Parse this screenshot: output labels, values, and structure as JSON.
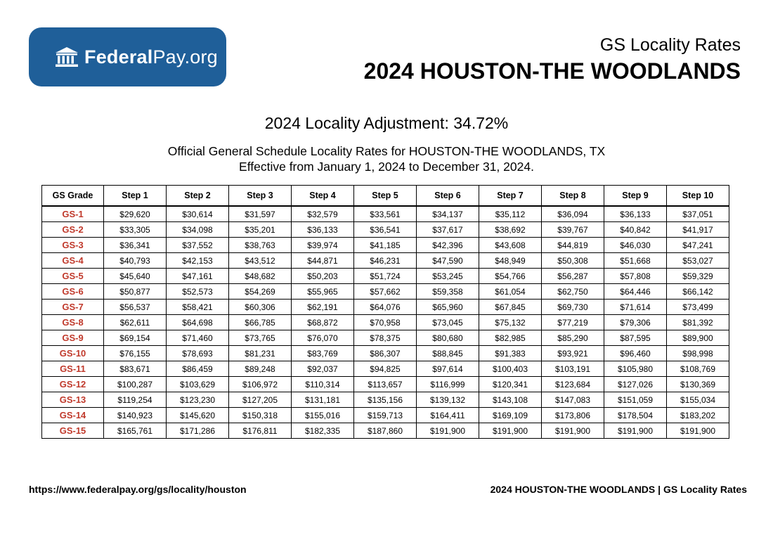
{
  "logo": {
    "text_bold": "Federal",
    "text_regular": "Pay.org",
    "color": "#1f5f99"
  },
  "header": {
    "subtitle": "GS Locality Rates",
    "title": "2024 HOUSTON-THE WOODLANDS"
  },
  "adjustment": "2024 Locality Adjustment: 34.72%",
  "description": {
    "line1": "Official General Schedule Locality Rates for HOUSTON-THE WOODLANDS, TX",
    "line2": "Effective from January 1, 2024 to December 31, 2024."
  },
  "table": {
    "headers": [
      "GS Grade",
      "Step 1",
      "Step 2",
      "Step 3",
      "Step 4",
      "Step 5",
      "Step 6",
      "Step 7",
      "Step 8",
      "Step 9",
      "Step 10"
    ],
    "rows": [
      [
        "GS-1",
        "$29,620",
        "$30,614",
        "$31,597",
        "$32,579",
        "$33,561",
        "$34,137",
        "$35,112",
        "$36,094",
        "$36,133",
        "$37,051"
      ],
      [
        "GS-2",
        "$33,305",
        "$34,098",
        "$35,201",
        "$36,133",
        "$36,541",
        "$37,617",
        "$38,692",
        "$39,767",
        "$40,842",
        "$41,917"
      ],
      [
        "GS-3",
        "$36,341",
        "$37,552",
        "$38,763",
        "$39,974",
        "$41,185",
        "$42,396",
        "$43,608",
        "$44,819",
        "$46,030",
        "$47,241"
      ],
      [
        "GS-4",
        "$40,793",
        "$42,153",
        "$43,512",
        "$44,871",
        "$46,231",
        "$47,590",
        "$48,949",
        "$50,308",
        "$51,668",
        "$53,027"
      ],
      [
        "GS-5",
        "$45,640",
        "$47,161",
        "$48,682",
        "$50,203",
        "$51,724",
        "$53,245",
        "$54,766",
        "$56,287",
        "$57,808",
        "$59,329"
      ],
      [
        "GS-6",
        "$50,877",
        "$52,573",
        "$54,269",
        "$55,965",
        "$57,662",
        "$59,358",
        "$61,054",
        "$62,750",
        "$64,446",
        "$66,142"
      ],
      [
        "GS-7",
        "$56,537",
        "$58,421",
        "$60,306",
        "$62,191",
        "$64,076",
        "$65,960",
        "$67,845",
        "$69,730",
        "$71,614",
        "$73,499"
      ],
      [
        "GS-8",
        "$62,611",
        "$64,698",
        "$66,785",
        "$68,872",
        "$70,958",
        "$73,045",
        "$75,132",
        "$77,219",
        "$79,306",
        "$81,392"
      ],
      [
        "GS-9",
        "$69,154",
        "$71,460",
        "$73,765",
        "$76,070",
        "$78,375",
        "$80,680",
        "$82,985",
        "$85,290",
        "$87,595",
        "$89,900"
      ],
      [
        "GS-10",
        "$76,155",
        "$78,693",
        "$81,231",
        "$83,769",
        "$86,307",
        "$88,845",
        "$91,383",
        "$93,921",
        "$96,460",
        "$98,998"
      ],
      [
        "GS-11",
        "$83,671",
        "$86,459",
        "$89,248",
        "$92,037",
        "$94,825",
        "$97,614",
        "$100,403",
        "$103,191",
        "$105,980",
        "$108,769"
      ],
      [
        "GS-12",
        "$100,287",
        "$103,629",
        "$106,972",
        "$110,314",
        "$113,657",
        "$116,999",
        "$120,341",
        "$123,684",
        "$127,026",
        "$130,369"
      ],
      [
        "GS-13",
        "$119,254",
        "$123,230",
        "$127,205",
        "$131,181",
        "$135,156",
        "$139,132",
        "$143,108",
        "$147,083",
        "$151,059",
        "$155,034"
      ],
      [
        "GS-14",
        "$140,923",
        "$145,620",
        "$150,318",
        "$155,016",
        "$159,713",
        "$164,411",
        "$169,109",
        "$173,806",
        "$178,504",
        "$183,202"
      ],
      [
        "GS-15",
        "$165,761",
        "$171,286",
        "$176,811",
        "$182,335",
        "$187,860",
        "$191,900",
        "$191,900",
        "$191,900",
        "$191,900",
        "$191,900"
      ]
    ],
    "grade_color": "#c0392b"
  },
  "footer": {
    "url": "https://www.federalpay.org/gs/locality/houston",
    "caption": "2024 HOUSTON-THE WOODLANDS | GS Locality Rates"
  }
}
